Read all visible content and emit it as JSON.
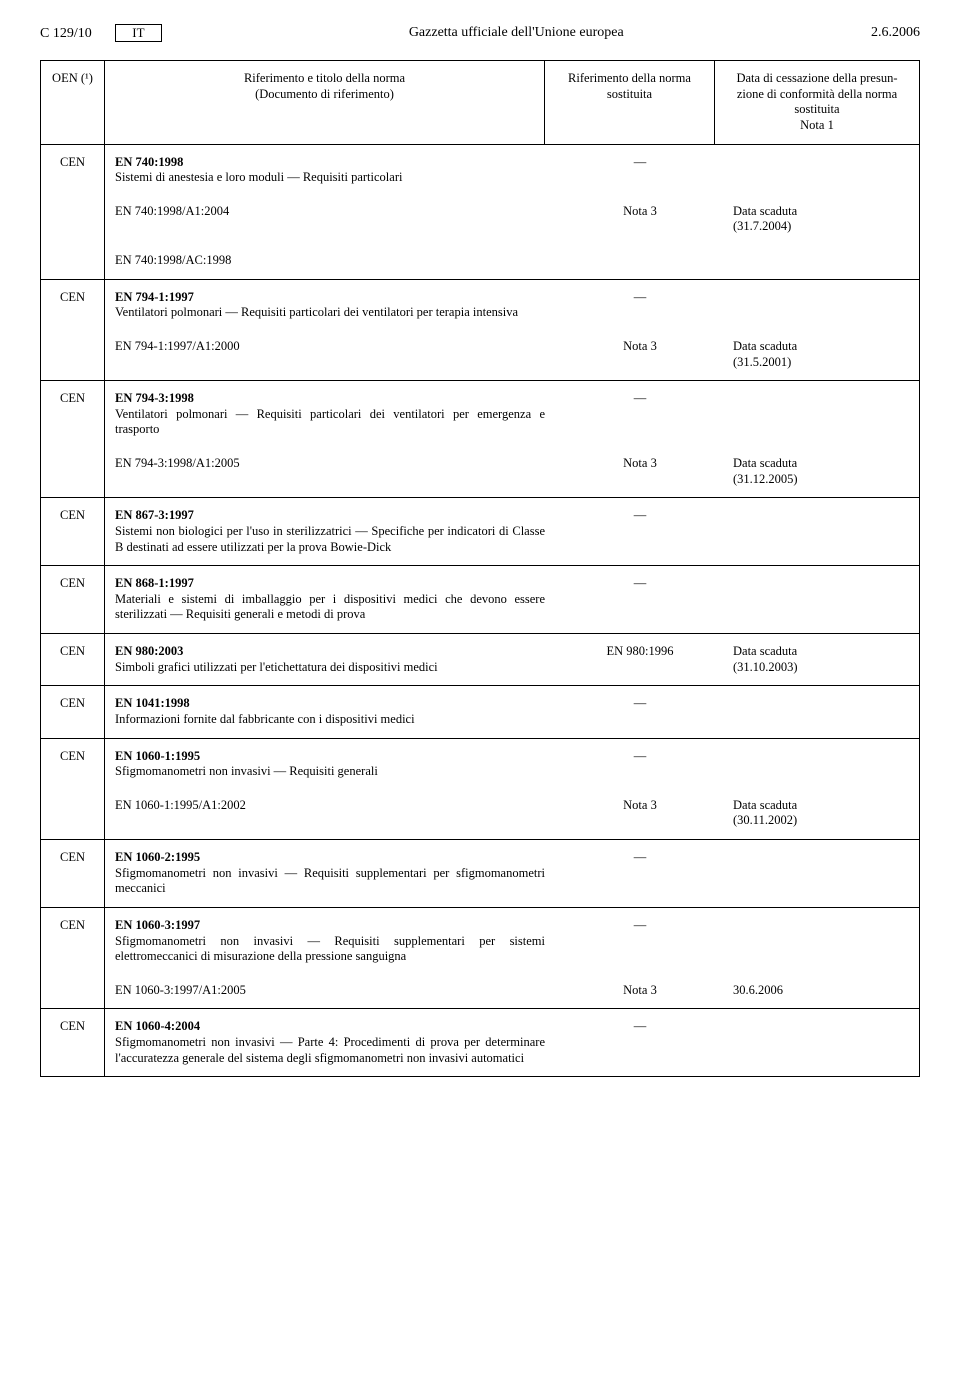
{
  "header": {
    "left": "C 129/10",
    "lang": "IT",
    "center": "Gazzetta ufficiale dell'Unione europea",
    "right": "2.6.2006"
  },
  "columns": {
    "oen": "OEN (¹)",
    "title_l1": "Riferimento e titolo della norma",
    "title_l2": "(Documento di riferimento)",
    "ref_l1": "Riferimento della norma",
    "ref_l2": "sostituita",
    "date_l1": "Data di cessazione della presun-",
    "date_l2": "zione di conformità della norma",
    "date_l3": "sostituita",
    "date_l4": "Nota 1"
  },
  "rows": [
    {
      "oen": "CEN",
      "main_code": "EN 740:1998",
      "main_desc": "Sistemi di anestesia e loro moduli — Requisiti particolari",
      "ref": "—",
      "date": "",
      "subs": [
        {
          "title": "EN 740:1998/A1:2004",
          "ref": "Nota 3",
          "date": "Data scaduta\n(31.7.2004)"
        },
        {
          "title": "EN 740:1998/AC:1998",
          "ref": "",
          "date": ""
        }
      ]
    },
    {
      "oen": "CEN",
      "main_code": "EN 794-1:1997",
      "main_desc": "Ventilatori polmonari — Requisiti particolari dei ventilatori per terapia intensiva",
      "ref": "—",
      "date": "",
      "subs": [
        {
          "title": "EN 794-1:1997/A1:2000",
          "ref": "Nota 3",
          "date": "Data scaduta\n(31.5.2001)"
        }
      ]
    },
    {
      "oen": "CEN",
      "main_code": "EN 794-3:1998",
      "main_desc": "Ventilatori polmonari — Requisiti particolari dei ventilatori per emergenza e trasporto",
      "ref": "—",
      "date": "",
      "subs": [
        {
          "title": "EN 794-3:1998/A1:2005",
          "ref": "Nota 3",
          "date": "Data scaduta\n(31.12.2005)"
        }
      ]
    },
    {
      "oen": "CEN",
      "main_code": "EN 867-3:1997",
      "main_desc": "Sistemi non biologici per l'uso in sterilizzatrici — Specifiche per indicatori di Classe B destinati ad essere utilizzati per la prova Bowie-Dick",
      "ref": "—",
      "date": "",
      "subs": []
    },
    {
      "oen": "CEN",
      "main_code": "EN 868-1:1997",
      "main_desc": "Materiali e sistemi di imballaggio per i dispositivi medici che devono essere sterilizzati — Requisiti generali e metodi di prova",
      "ref": "—",
      "date": "",
      "subs": []
    },
    {
      "oen": "CEN",
      "main_code": "EN 980:2003",
      "main_desc": "Simboli grafici utilizzati per l'etichettatura dei dispositivi medici",
      "ref": "EN 980:1996",
      "date": "Data scaduta\n(31.10.2003)",
      "subs": []
    },
    {
      "oen": "CEN",
      "main_code": "EN 1041:1998",
      "main_desc": "Informazioni fornite dal fabbricante con i dispositivi medici",
      "ref": "—",
      "date": "",
      "subs": []
    },
    {
      "oen": "CEN",
      "main_code": "EN 1060-1:1995",
      "main_desc": "Sfigmomanometri non invasivi — Requisiti generali",
      "ref": "—",
      "date": "",
      "subs": [
        {
          "title": "EN 1060-1:1995/A1:2002",
          "ref": "Nota 3",
          "date": "Data scaduta\n(30.11.2002)"
        }
      ]
    },
    {
      "oen": "CEN",
      "main_code": "EN 1060-2:1995",
      "main_desc": "Sfigmomanometri non invasivi — Requisiti supplementari per sfigmomanometri meccanici",
      "ref": "—",
      "date": "",
      "subs": []
    },
    {
      "oen": "CEN",
      "main_code": "EN 1060-3:1997",
      "main_desc": "Sfigmomanometri non invasivi — Requisiti supplementari per sistemi elettromeccanici di misurazione della pressione sanguigna",
      "ref": "—",
      "date": "",
      "subs": [
        {
          "title": "EN 1060-3:1997/A1:2005",
          "ref": "Nota 3",
          "date": "30.6.2006"
        }
      ]
    },
    {
      "oen": "CEN",
      "main_code": "EN 1060-4:2004",
      "main_desc": "Sfigmomanometri non invasivi — Parte 4: Procedimenti di prova per determinare l'accuratezza generale del sistema degli sfigmomanometri non invasivi automatici",
      "ref": "—",
      "date": "",
      "subs": []
    }
  ]
}
